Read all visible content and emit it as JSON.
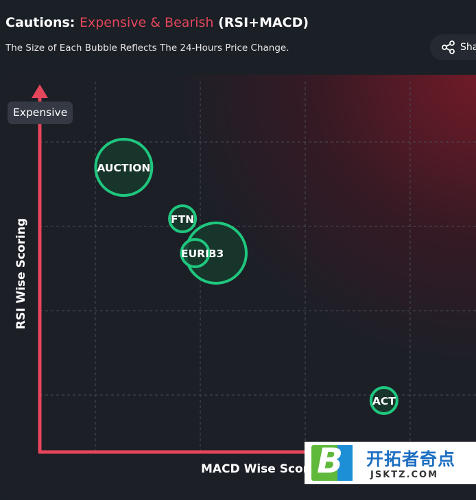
{
  "header": {
    "title_prefix": "Cautions:",
    "title_accent": "Expensive & Bearish",
    "title_suffix": "(RSI+MACD)",
    "subtitle": "The Size of Each Bubble Reflects The 24-Hours Price Change.",
    "share_label": "Sha",
    "share_icon": "share-icon"
  },
  "colors": {
    "accent": "#e5465b",
    "bubble_stroke": "#1fc77e",
    "bubble_fill": "#163a2d",
    "axis": "#e5465b"
  },
  "chart_data": {
    "type": "scatter",
    "title": "",
    "xlabel": "MACD Wise Scor",
    "ylabel": "RSI Wise Scoring",
    "y_badge": "Expensive",
    "grid": true,
    "points": [
      {
        "label": "AUCTION",
        "x": 0.2,
        "y": 0.83,
        "size": 41
      },
      {
        "label": "FTN",
        "x": 0.34,
        "y": 0.68,
        "size": 19
      },
      {
        "label": "B3",
        "x": 0.42,
        "y": 0.58,
        "size": 44
      },
      {
        "label": "EURI",
        "x": 0.37,
        "y": 0.58,
        "size": 20
      },
      {
        "label": "ACT",
        "x": 0.82,
        "y": 0.15,
        "size": 19
      }
    ]
  },
  "watermark": {
    "brand_letter": "B",
    "main": "开拓者奇点",
    "sub": "JSKTZ.COM"
  }
}
